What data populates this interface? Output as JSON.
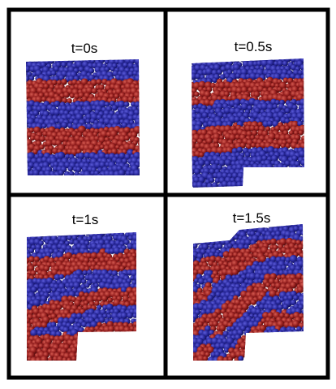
{
  "figure": {
    "colors": {
      "layer_a": "#21218f",
      "layer_b": "#8e1a1a",
      "frame": "#000000",
      "background": "#ffffff"
    },
    "panels": [
      {
        "time_label": "t=0s",
        "time_s": 0,
        "state": "initial-stratified-column"
      },
      {
        "time_label": "t=0.5s",
        "time_s": 0.5,
        "state": "gate-opening"
      },
      {
        "time_label": "t=1s",
        "time_s": 1,
        "state": "collapse-onset"
      },
      {
        "time_label": "t=1.5s",
        "time_s": 1.5,
        "state": "granular-flow"
      }
    ]
  }
}
